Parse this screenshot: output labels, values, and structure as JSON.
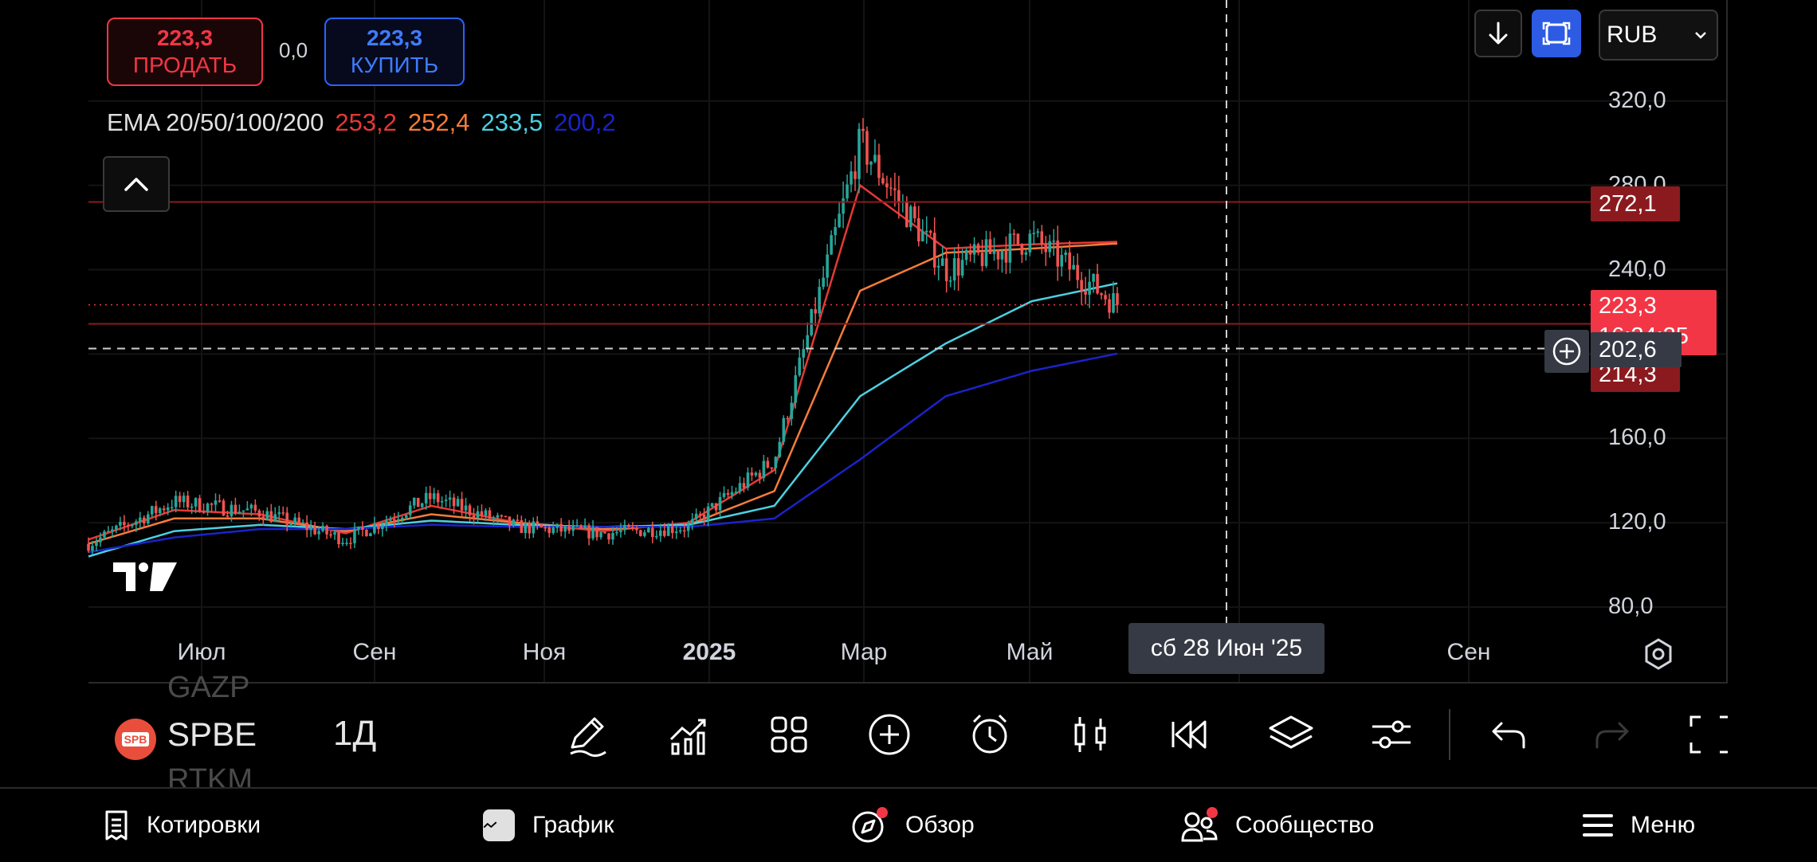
{
  "trade": {
    "sell_price": "223,3",
    "sell_label": "ПРОДАТЬ",
    "spread": "0,0",
    "buy_price": "223,3",
    "buy_label": "КУПИТЬ"
  },
  "indicator": {
    "name": "EMA 20/50/100/200",
    "values": [
      {
        "value": "253,2",
        "color": "#e53935"
      },
      {
        "value": "252,4",
        "color": "#f57c3a"
      },
      {
        "value": "233,5",
        "color": "#4dd0e1"
      },
      {
        "value": "200,2",
        "color": "#1a23c9"
      }
    ]
  },
  "currency": "RUB",
  "price_axis": {
    "ticks": [
      "320,0",
      "280,0",
      "240,0",
      "160,0",
      "120,0",
      "80,0"
    ],
    "tags": {
      "level_high": "272,1",
      "last_price": "223,3",
      "last_price_timer": "16:24:25",
      "level_low": "214,3",
      "crosshair": "202,6"
    }
  },
  "time_axis": {
    "ticks": [
      "Июл",
      "Сен",
      "Ноя",
      "2025",
      "Мар",
      "Май",
      "Сен"
    ],
    "crosshair_date": "сб 28 Июн '25"
  },
  "symbol": {
    "prev": "GAZP",
    "current": "SPBE",
    "next": "RTKM",
    "logo_text": "SPB",
    "interval": "1Д"
  },
  "toolbar_icons": [
    "pencil-icon",
    "indicators-icon",
    "grid-icon",
    "plus-circle-icon",
    "alarm-icon",
    "candles-icon",
    "replay-icon",
    "layers-icon",
    "settings-sliders-icon",
    "undo-icon",
    "redo-icon",
    "fullscreen-icon"
  ],
  "tabs": [
    {
      "label": "Котировки",
      "icon": "list-icon"
    },
    {
      "label": "График",
      "icon": "chart-icon"
    },
    {
      "label": "Обзор",
      "icon": "compass-icon"
    },
    {
      "label": "Сообщество",
      "icon": "community-icon"
    },
    {
      "label": "Меню",
      "icon": "menu-icon"
    }
  ],
  "colors": {
    "up": "#26a69a",
    "down": "#ef5350",
    "sell": "#f23645",
    "buy": "#2962ff",
    "accent_button": "#2d5be3"
  },
  "chart_data": {
    "type": "candlestick",
    "interval": "1Д",
    "ylim": [
      70,
      335
    ],
    "x": [
      "Июн '24",
      "Июл '24",
      "Авг '24",
      "Сен '24",
      "Окт '24",
      "Ноя '24",
      "Дек '24",
      "Янв '25",
      "Фев '25",
      "Мар '25",
      "Апр '25",
      "Май '25",
      "Июн '25"
    ],
    "close": [
      110,
      130,
      125,
      112,
      132,
      118,
      115,
      118,
      150,
      300,
      240,
      255,
      223.3
    ],
    "series": [
      {
        "name": "EMA 20",
        "last": 253.2,
        "values": [
          112,
          126,
          124,
          115,
          128,
          120,
          116,
          120,
          145,
          280,
          250,
          252,
          253.2
        ]
      },
      {
        "name": "EMA 50",
        "last": 252.4,
        "values": [
          110,
          122,
          122,
          116,
          124,
          120,
          117,
          119,
          135,
          230,
          248,
          250,
          252.4
        ]
      },
      {
        "name": "EMA 100",
        "last": 233.5,
        "values": [
          104,
          116,
          119,
          117,
          121,
          119,
          118,
          119,
          128,
          180,
          205,
          225,
          233.5
        ]
      },
      {
        "name": "EMA 200",
        "last": 200.2,
        "values": [
          106,
          113,
          117,
          117,
          119,
          118,
          118,
          118,
          122,
          150,
          180,
          192,
          200.2
        ]
      }
    ],
    "horizontal_levels": [
      272.1,
      214.3
    ],
    "last_price": 223.3,
    "crosshair_price": 202.6
  }
}
